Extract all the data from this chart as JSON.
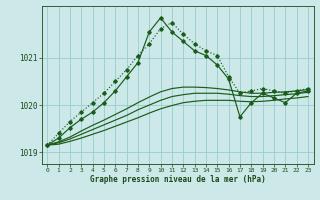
{
  "xlabel": "Graphe pression niveau de la mer (hPa)",
  "background_color": "#cce8e8",
  "grid_color": "#99cccc",
  "line_color": "#1a5c1a",
  "ylim": [
    1018.75,
    1022.1
  ],
  "xlim": [
    -0.5,
    23.5
  ],
  "yticks": [
    1019,
    1020,
    1021
  ],
  "xticks": [
    0,
    1,
    2,
    3,
    4,
    5,
    6,
    7,
    8,
    9,
    10,
    11,
    12,
    13,
    14,
    15,
    16,
    17,
    18,
    19,
    20,
    21,
    22,
    23
  ],
  "series1_dotted": [
    1019.15,
    1019.4,
    1019.65,
    1019.85,
    1020.05,
    1020.25,
    1020.5,
    1020.75,
    1021.05,
    1021.3,
    1021.62,
    1021.75,
    1021.5,
    1021.3,
    1021.15,
    1021.05,
    1020.6,
    1020.25,
    1020.3,
    1020.35,
    1020.3,
    1020.25,
    1020.3,
    1020.35
  ],
  "series2_solid": [
    1019.15,
    1019.3,
    1019.52,
    1019.7,
    1019.85,
    1020.05,
    1020.3,
    1020.6,
    1020.9,
    1021.55,
    1021.85,
    1021.55,
    1021.35,
    1021.15,
    1021.05,
    1020.85,
    1020.55,
    1019.75,
    1020.05,
    1020.25,
    1020.15,
    1020.05,
    1020.25,
    1020.3
  ],
  "series3": [
    1019.15,
    1019.22,
    1019.32,
    1019.45,
    1019.57,
    1019.68,
    1019.8,
    1019.92,
    1020.05,
    1020.17,
    1020.28,
    1020.35,
    1020.38,
    1020.38,
    1020.37,
    1020.35,
    1020.32,
    1020.28,
    1020.25,
    1020.25,
    1020.27,
    1020.28,
    1020.3,
    1020.33
  ],
  "series4": [
    1019.15,
    1019.2,
    1019.28,
    1019.38,
    1019.48,
    1019.58,
    1019.68,
    1019.78,
    1019.9,
    1020.0,
    1020.1,
    1020.18,
    1020.22,
    1020.25,
    1020.25,
    1020.25,
    1020.23,
    1020.2,
    1020.18,
    1020.18,
    1020.2,
    1020.22,
    1020.24,
    1020.27
  ],
  "series5": [
    1019.15,
    1019.17,
    1019.23,
    1019.3,
    1019.38,
    1019.46,
    1019.55,
    1019.64,
    1019.73,
    1019.83,
    1019.92,
    1019.99,
    1020.05,
    1020.08,
    1020.1,
    1020.1,
    1020.1,
    1020.08,
    1020.07,
    1020.08,
    1020.1,
    1020.13,
    1020.15,
    1020.18
  ]
}
